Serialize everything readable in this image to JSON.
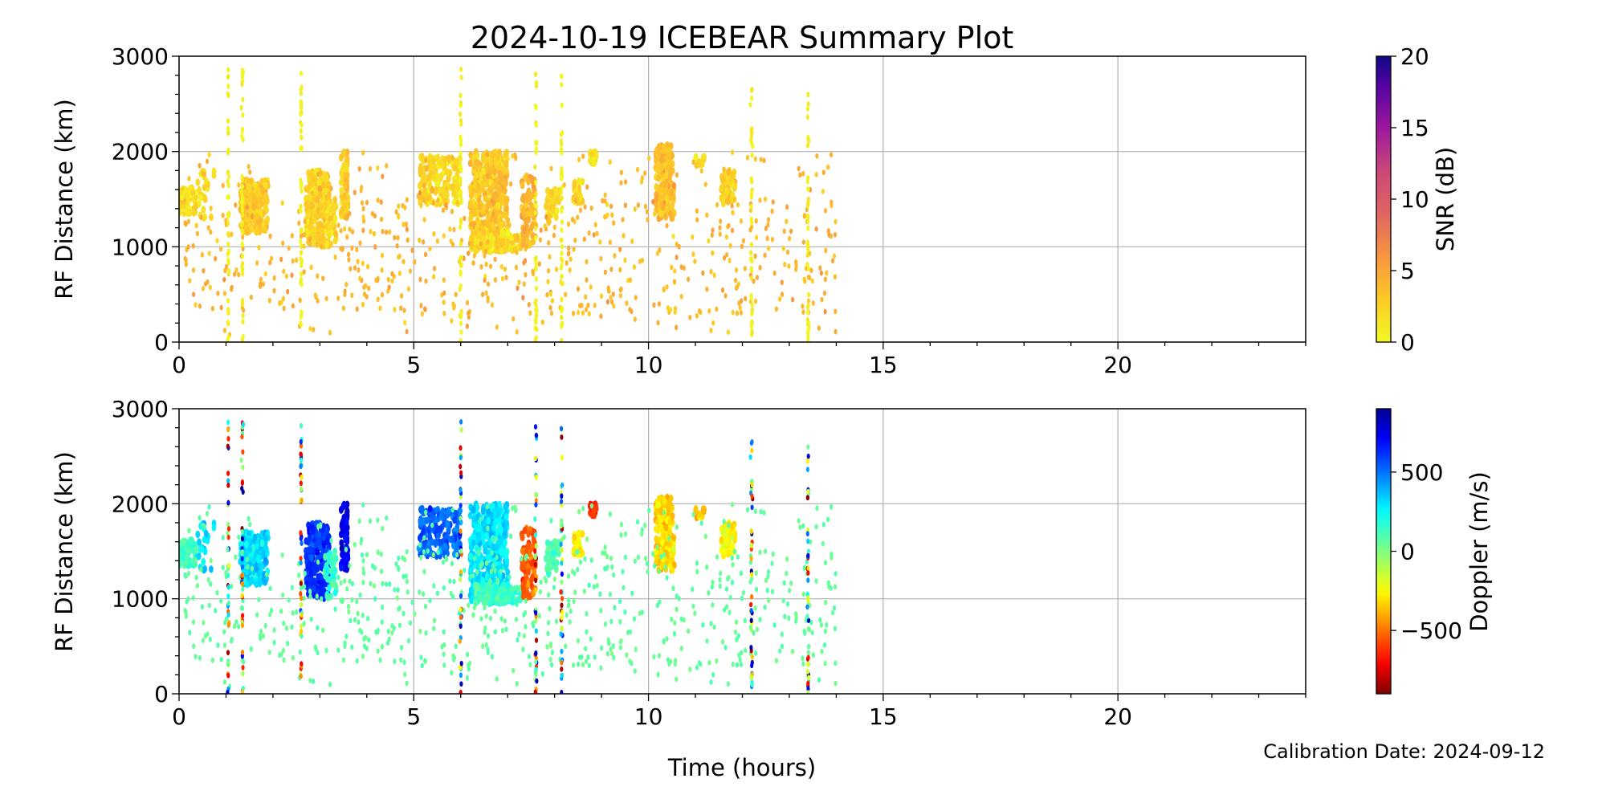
{
  "chart_data": [
    {
      "type": "scatter",
      "title": "2024-10-19 ICEBEAR Summary Plot",
      "xlabel": "Time (hours)",
      "ylabel": "RF Distance (km)",
      "xlim": [
        0,
        24
      ],
      "ylim": [
        0,
        3000
      ],
      "xticks": [
        "0",
        "5",
        "10",
        "15",
        "20"
      ],
      "yticks": [
        "0",
        "1000",
        "2000",
        "3000"
      ],
      "grid": true,
      "color_variable": "snr",
      "colorbar": {
        "label": "SNR (dB)",
        "range": [
          0,
          20
        ],
        "ticks": [
          "0",
          "5",
          "10",
          "15",
          "20"
        ],
        "colormap": "plasma_r"
      }
    },
    {
      "type": "scatter",
      "xlabel": "Time (hours)",
      "ylabel": "RF Distance (km)",
      "xlim": [
        0,
        24
      ],
      "ylim": [
        0,
        3000
      ],
      "xticks": [
        "0",
        "5",
        "10",
        "15",
        "20"
      ],
      "yticks": [
        "0",
        "1000",
        "2000",
        "3000"
      ],
      "grid": true,
      "color_variable": "doppler",
      "colorbar": {
        "label": "Doppler (m/s)",
        "range": [
          -900,
          900
        ],
        "ticks": [
          "−500",
          "0",
          "500"
        ],
        "tick_values": [
          -500,
          0,
          500
        ],
        "colormap": "jet_r"
      }
    }
  ],
  "clusters": [
    {
      "t": [
        0.0,
        0.35
      ],
      "r": [
        1350,
        1620
      ],
      "n": 60,
      "snr": 1.5,
      "doppler": 120
    },
    {
      "t": [
        0.35,
        0.75
      ],
      "r": [
        1300,
        1800
      ],
      "n": 25,
      "snr": 1.5,
      "doppler": 300
    },
    {
      "t": [
        1.3,
        1.9
      ],
      "r": [
        1150,
        1700
      ],
      "n": 220,
      "snr": 3,
      "doppler": 320
    },
    {
      "t": [
        2.7,
        3.2
      ],
      "r": [
        1000,
        1800
      ],
      "n": 200,
      "snr": 2.5,
      "doppler": 620
    },
    {
      "t": [
        3.1,
        3.35
      ],
      "r": [
        1000,
        1500
      ],
      "n": 40,
      "snr": 2,
      "doppler": 150
    },
    {
      "t": [
        3.45,
        3.6
      ],
      "r": [
        1300,
        2000
      ],
      "n": 70,
      "snr": 3,
      "doppler": 720
    },
    {
      "t": [
        5.1,
        6.0
      ],
      "r": [
        1450,
        1950
      ],
      "n": 160,
      "snr": 2,
      "doppler": 520
    },
    {
      "t": [
        6.2,
        7.0
      ],
      "r": [
        950,
        2000
      ],
      "n": 420,
      "snr": 3,
      "doppler": 300
    },
    {
      "t": [
        6.3,
        7.3
      ],
      "r": [
        950,
        1150
      ],
      "n": 120,
      "snr": 2,
      "doppler": 150
    },
    {
      "t": [
        7.3,
        7.6
      ],
      "r": [
        1000,
        1750
      ],
      "n": 90,
      "snr": 4,
      "doppler": -550
    },
    {
      "t": [
        7.8,
        8.1
      ],
      "r": [
        1250,
        1600
      ],
      "n": 40,
      "snr": 2,
      "doppler": 100
    },
    {
      "t": [
        8.4,
        8.6
      ],
      "r": [
        1450,
        1700
      ],
      "n": 30,
      "snr": 2,
      "doppler": -250
    },
    {
      "t": [
        8.75,
        8.9
      ],
      "r": [
        1850,
        2000
      ],
      "n": 25,
      "snr": 2,
      "doppler": -620
    },
    {
      "t": [
        10.15,
        10.55
      ],
      "r": [
        1300,
        2070
      ],
      "n": 180,
      "snr": 3.5,
      "doppler": -320
    },
    {
      "t": [
        11.0,
        11.2
      ],
      "r": [
        1850,
        1950
      ],
      "n": 15,
      "snr": 2,
      "doppler": -350
    },
    {
      "t": [
        11.55,
        11.85
      ],
      "r": [
        1450,
        1800
      ],
      "n": 70,
      "snr": 2.5,
      "doppler": -260
    }
  ],
  "background_scatter": {
    "t": [
      0,
      14
    ],
    "r": [
      50,
      2000
    ],
    "n": 700,
    "snr": 4,
    "doppler": 60
  },
  "streaks": [
    {
      "t": 1.05,
      "r": [
        0,
        2930
      ]
    },
    {
      "t": 1.35,
      "r": [
        0,
        2850
      ]
    },
    {
      "t": 2.6,
      "r": [
        100,
        2880
      ]
    },
    {
      "t": 6.0,
      "r": [
        0,
        2930
      ]
    },
    {
      "t": 7.6,
      "r": [
        0,
        2900
      ]
    },
    {
      "t": 8.15,
      "r": [
        0,
        2880
      ]
    },
    {
      "t": 12.2,
      "r": [
        0,
        2650
      ]
    },
    {
      "t": 13.4,
      "r": [
        0,
        2600
      ]
    }
  ],
  "footer": {
    "calibration": "Calibration Date: 2024-09-12"
  }
}
